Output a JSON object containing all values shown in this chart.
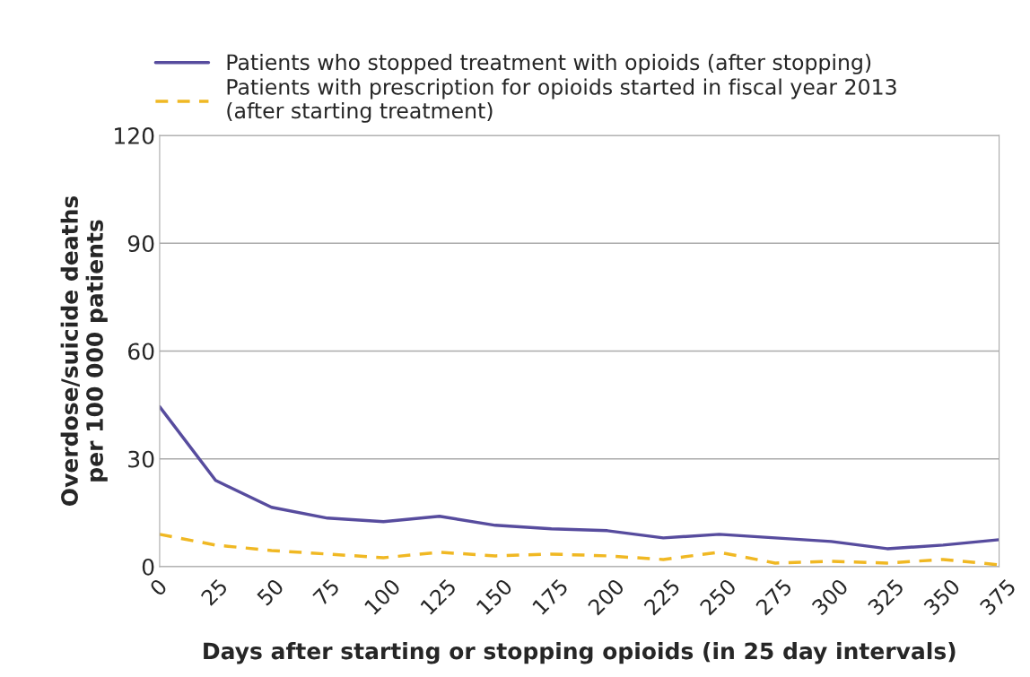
{
  "chart_data": {
    "type": "line",
    "xlabel": "Days after starting or stopping opioids (in 25 day intervals)",
    "ylabel": "Overdose/suicide deaths\nper 100 000 patients",
    "x": [
      0,
      25,
      50,
      75,
      100,
      125,
      150,
      175,
      200,
      225,
      250,
      275,
      300,
      325,
      350,
      375
    ],
    "xlim": [
      0,
      375
    ],
    "xticks": [
      0,
      25,
      50,
      75,
      100,
      125,
      150,
      175,
      200,
      225,
      250,
      275,
      300,
      325,
      350,
      375
    ],
    "ylim": [
      0,
      120
    ],
    "yticks": [
      0,
      30,
      60,
      90,
      120
    ],
    "grid": "y",
    "legend": "top",
    "series": [
      {
        "name": "Patients who stopped treatment with opioids (after stopping)",
        "color": "#574c9e",
        "line_style": "solid",
        "values": [
          44.5,
          24,
          16.5,
          13.5,
          12.5,
          14,
          11.5,
          10.5,
          10,
          8,
          9,
          8,
          7,
          5,
          6,
          7.5
        ]
      },
      {
        "name": "Patients with prescription for opioids started in fiscal year 2013\n(after starting treatment)",
        "color": "#f0b823",
        "line_style": "dashed",
        "values": [
          9,
          6,
          4.5,
          3.5,
          2.5,
          4,
          3,
          3.5,
          3,
          2,
          4,
          1,
          1.5,
          1,
          2,
          0.5
        ]
      }
    ]
  }
}
